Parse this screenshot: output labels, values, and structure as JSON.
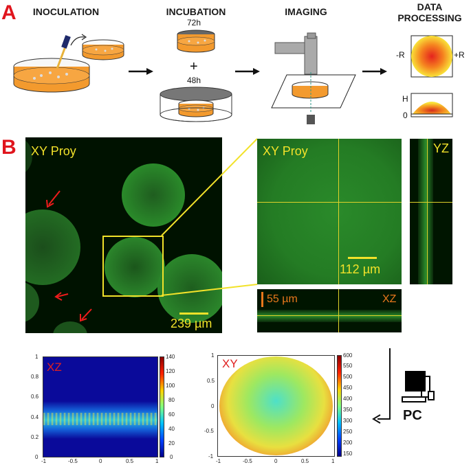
{
  "panel_a": {
    "letter": "A",
    "steps": {
      "inoculation": "INOCULATION",
      "incubation": "INCUBATION",
      "imaging": "IMAGING",
      "data_processing_1": "DATA",
      "data_processing_2": "PROCESSING"
    },
    "time_72": "72h",
    "plus": "+",
    "time_48": "48h",
    "minus_r": "-R",
    "plus_r": "+R",
    "h_label": "H",
    "zero_label": "0"
  },
  "panel_b": {
    "letter": "B",
    "xy_proy_left": "XY Proy",
    "scale_left": "239 µm",
    "xy_proy_right": "XY Proy",
    "scale_right": "112 µm",
    "yz_label": "YZ",
    "xz_label": "XZ",
    "scale_xz": "55 µm"
  },
  "panel_c": {
    "pc_label": "PC",
    "xz_plot_label": "XZ",
    "xy_plot_label": "XY",
    "xz_y_ticks": [
      "1",
      "0.8",
      "0.6",
      "0.4",
      "0.2",
      "0"
    ],
    "xz_x_ticks": [
      "-1",
      "-0.5",
      "0",
      "0.5",
      "1"
    ],
    "xz_cbar_ticks": [
      "140",
      "120",
      "100",
      "80",
      "60",
      "40",
      "20",
      "0"
    ],
    "xy_y_ticks": [
      "1",
      "0.5",
      "0",
      "-0.5",
      "-1"
    ],
    "xy_x_ticks": [
      "-1",
      "-0.5",
      "0",
      "0.5",
      "1"
    ],
    "xy_cbar_ticks": [
      "600",
      "550",
      "500",
      "450",
      "400",
      "350",
      "300",
      "250",
      "200",
      "150"
    ]
  },
  "colors": {
    "accent_red": "#e0151d",
    "scale_yellow": "#f2e22a",
    "xz_orange": "#e8781c",
    "agar_orange": "#f39a2e"
  }
}
